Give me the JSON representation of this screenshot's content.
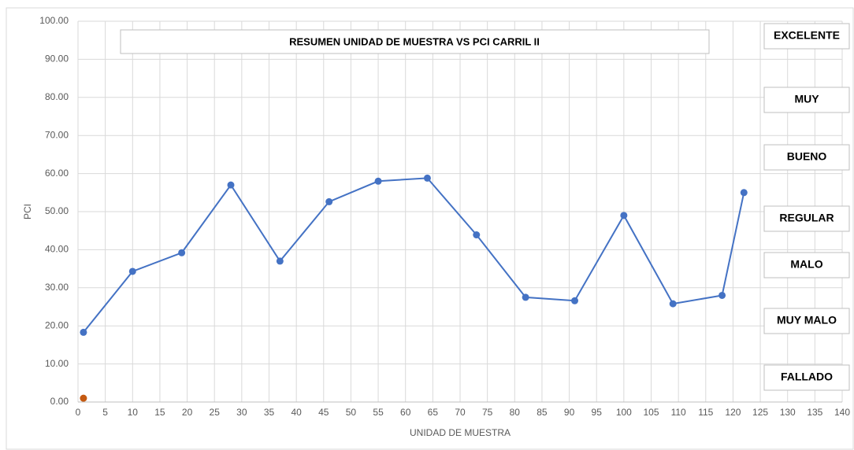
{
  "chart_data": {
    "type": "line",
    "title": "RESUMEN UNIDAD DE MUESTRA VS PCI CARRIL II",
    "x_label": "UNIDAD DE MUESTRA",
    "y_label": "PCI",
    "series": [
      {
        "color": "#4472c4",
        "x": [
          1,
          10,
          19,
          28,
          37,
          46,
          55,
          64,
          73,
          82,
          91,
          100,
          109,
          118,
          122
        ],
        "values": [
          18.3,
          34.3,
          39.2,
          57,
          37,
          52.6,
          58,
          58.8,
          43.9,
          27.5,
          26.6,
          49,
          25.8,
          28,
          55
        ]
      },
      {
        "color": "#c55a11",
        "x": [
          1
        ],
        "values": [
          1
        ]
      }
    ],
    "xlim": [
      0,
      140
    ],
    "xticks": [
      0,
      5,
      10,
      15,
      20,
      25,
      30,
      35,
      40,
      45,
      50,
      55,
      60,
      65,
      70,
      75,
      80,
      85,
      90,
      95,
      100,
      105,
      110,
      115,
      120,
      125,
      130,
      135,
      140
    ],
    "ylim": [
      0,
      100
    ],
    "yticks": [
      {
        "value": 0,
        "label": "0.00"
      },
      {
        "value": 10,
        "label": "10.00"
      },
      {
        "value": 20,
        "label": "20.00"
      },
      {
        "value": 30,
        "label": "30.00"
      },
      {
        "value": 40,
        "label": "40.00"
      },
      {
        "value": 50,
        "label": "50.00"
      },
      {
        "value": 60,
        "label": "60.00"
      },
      {
        "value": 70,
        "label": "70.00"
      },
      {
        "value": 80,
        "label": "80.00"
      },
      {
        "value": 90,
        "label": "90.00"
      },
      {
        "value": 100,
        "label": "100.00"
      }
    ],
    "grid": true,
    "rating_labels": [
      "EXCELENTE",
      "MUY",
      "BUENO",
      "REGULAR",
      "MALO",
      "MUY MALO",
      "FALLADO"
    ]
  }
}
